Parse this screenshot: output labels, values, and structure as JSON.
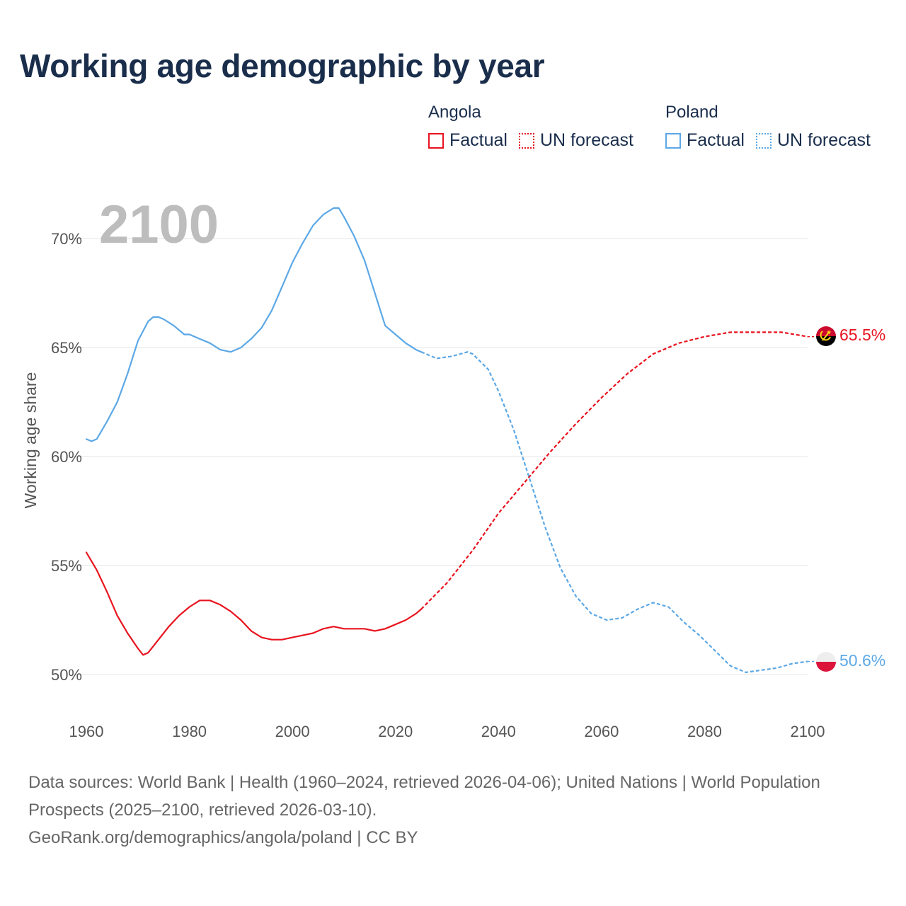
{
  "title": "Working age demographic by year",
  "legend": [
    {
      "country": "Angola",
      "factual_label": "Factual",
      "forecast_label": "UN forecast",
      "color": "#e8131f"
    },
    {
      "country": "Poland",
      "factual_label": "Factual",
      "forecast_label": "UN forecast",
      "color": "#5ca8e6"
    }
  ],
  "year_display": "2100",
  "source": {
    "line1": "Data sources: World Bank | Health (1960–2024, retrieved 2026-04-06); United Nations | World Population Prospects (2025–2100, retrieved 2026-03-10).",
    "line2": "GeoRank.org/demographics/angola/poland | CC BY"
  },
  "flags": [
    {
      "country": "Angola",
      "icon": "angola-flag-icon",
      "colors": [
        "#cc092f",
        "#000000",
        "#f9d616"
      ]
    },
    {
      "country": "Poland",
      "icon": "poland-flag-icon",
      "colors": [
        "#eeeeee",
        "#dc143c"
      ]
    }
  ],
  "chart_data": {
    "type": "line",
    "title": "Working age demographic by year",
    "xlabel": "",
    "ylabel": "Working age share",
    "xlim": [
      1960,
      2100
    ],
    "ylim": [
      49.5,
      72
    ],
    "xticks": [
      1960,
      1980,
      2000,
      2020,
      2040,
      2060,
      2080,
      2100
    ],
    "xtick_labels": [
      "1960",
      "1980",
      "2000",
      "2020",
      "2040",
      "2060",
      "2080",
      "2100"
    ],
    "yticks": [
      50,
      55,
      60,
      65,
      70
    ],
    "ytick_labels": [
      "50%",
      "55%",
      "60%",
      "65%",
      "70%"
    ],
    "grid": true,
    "series": [
      {
        "name": "Angola",
        "color": "#e8131f",
        "end_label": "65.5%",
        "factual": {
          "x": [
            1960,
            1962,
            1964,
            1966,
            1968,
            1970,
            1971,
            1972,
            1974,
            1976,
            1978,
            1980,
            1982,
            1984,
            1986,
            1988,
            1990,
            1992,
            1994,
            1996,
            1998,
            2000,
            2002,
            2004,
            2006,
            2008,
            2010,
            2012,
            2014,
            2016,
            2018,
            2020,
            2022,
            2024,
            2025
          ],
          "y": [
            55.6,
            54.8,
            53.8,
            52.7,
            51.9,
            51.2,
            50.9,
            51.0,
            51.6,
            52.2,
            52.7,
            53.1,
            53.4,
            53.4,
            53.2,
            52.9,
            52.5,
            52.0,
            51.7,
            51.6,
            51.6,
            51.7,
            51.8,
            51.9,
            52.1,
            52.2,
            52.1,
            52.1,
            52.1,
            52.0,
            52.1,
            52.3,
            52.5,
            52.8,
            53.0
          ]
        },
        "forecast": {
          "x": [
            2025,
            2030,
            2035,
            2040,
            2045,
            2050,
            2055,
            2060,
            2065,
            2070,
            2075,
            2080,
            2085,
            2090,
            2095,
            2100
          ],
          "y": [
            53.0,
            54.2,
            55.7,
            57.4,
            58.8,
            60.2,
            61.5,
            62.7,
            63.8,
            64.7,
            65.2,
            65.5,
            65.7,
            65.7,
            65.7,
            65.5
          ]
        }
      },
      {
        "name": "Poland",
        "color": "#5ca8e6",
        "end_label": "50.6%",
        "factual": {
          "x": [
            1960,
            1961,
            1962,
            1964,
            1966,
            1968,
            1970,
            1972,
            1973,
            1974,
            1975,
            1977,
            1979,
            1980,
            1982,
            1984,
            1986,
            1988,
            1990,
            1992,
            1994,
            1996,
            1998,
            2000,
            2002,
            2004,
            2006,
            2008,
            2009,
            2010,
            2012,
            2014,
            2016,
            2018,
            2020,
            2022,
            2024,
            2025
          ],
          "y": [
            60.8,
            60.7,
            60.8,
            61.6,
            62.5,
            63.8,
            65.3,
            66.2,
            66.4,
            66.4,
            66.3,
            66.0,
            65.6,
            65.6,
            65.4,
            65.2,
            64.9,
            64.8,
            65.0,
            65.4,
            65.9,
            66.7,
            67.8,
            68.9,
            69.8,
            70.6,
            71.1,
            71.4,
            71.4,
            71.0,
            70.1,
            69.0,
            67.5,
            66.0,
            65.6,
            65.2,
            64.9,
            64.8
          ]
        },
        "forecast": {
          "x": [
            2025,
            2028,
            2031,
            2034,
            2035,
            2038,
            2040,
            2043,
            2046,
            2049,
            2052,
            2055,
            2058,
            2061,
            2064,
            2067,
            2070,
            2073,
            2076,
            2079,
            2082,
            2085,
            2088,
            2091,
            2094,
            2097,
            2100
          ],
          "y": [
            64.8,
            64.5,
            64.6,
            64.8,
            64.7,
            64.0,
            63.0,
            61.2,
            59.0,
            56.8,
            54.9,
            53.6,
            52.8,
            52.5,
            52.6,
            53.0,
            53.3,
            53.1,
            52.4,
            51.8,
            51.1,
            50.4,
            50.1,
            50.2,
            50.3,
            50.5,
            50.6
          ]
        }
      }
    ]
  }
}
